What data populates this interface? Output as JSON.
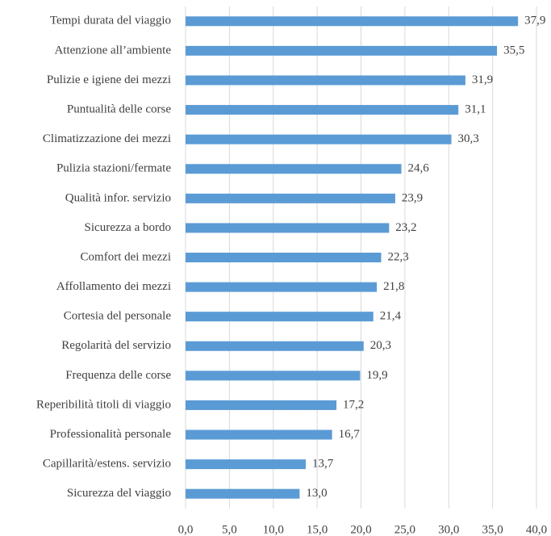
{
  "chart_data": {
    "type": "barh",
    "categories": [
      "Tempi durata del viaggio",
      "Attenzione all’ambiente",
      "Pulizie e igiene dei mezzi",
      "Puntualità delle corse",
      "Climatizzazione dei mezzi",
      "Pulizia stazioni/fermate",
      "Qualità infor. servizio",
      "Sicurezza a bordo",
      "Comfort dei mezzi",
      "Affollamento dei mezzi",
      "Cortesia del personale",
      "Regolarità del servizio",
      "Frequenza delle corse",
      "Reperibilità titoli di viaggio",
      "Professionalità personale",
      "Capillarità/estens. servizio",
      "Sicurezza del viaggio"
    ],
    "values": [
      37.9,
      35.5,
      31.9,
      31.1,
      30.3,
      24.6,
      23.9,
      23.2,
      22.3,
      21.8,
      21.4,
      20.3,
      19.9,
      17.2,
      16.7,
      13.7,
      13.0
    ],
    "value_labels": [
      "37,9",
      "35,5",
      "31,9",
      "31,1",
      "30,3",
      "24,6",
      "23,9",
      "23,2",
      "22,3",
      "21,8",
      "21,4",
      "20,3",
      "19,9",
      "17,2",
      "16,7",
      "13,7",
      "13,0"
    ],
    "color": "#5b9bd5",
    "xlim": [
      0,
      40
    ],
    "xticks": [
      {
        "value": 0,
        "label": "0,0"
      },
      {
        "value": 5,
        "label": "5,0"
      },
      {
        "value": 10,
        "label": "10,0"
      },
      {
        "value": 15,
        "label": "15,0"
      },
      {
        "value": 20,
        "label": "20,0"
      },
      {
        "value": 25,
        "label": "25,0"
      },
      {
        "value": 30,
        "label": "30,0"
      },
      {
        "value": 35,
        "label": "35,0"
      },
      {
        "value": 40,
        "label": "40,0"
      }
    ],
    "grid": true
  }
}
